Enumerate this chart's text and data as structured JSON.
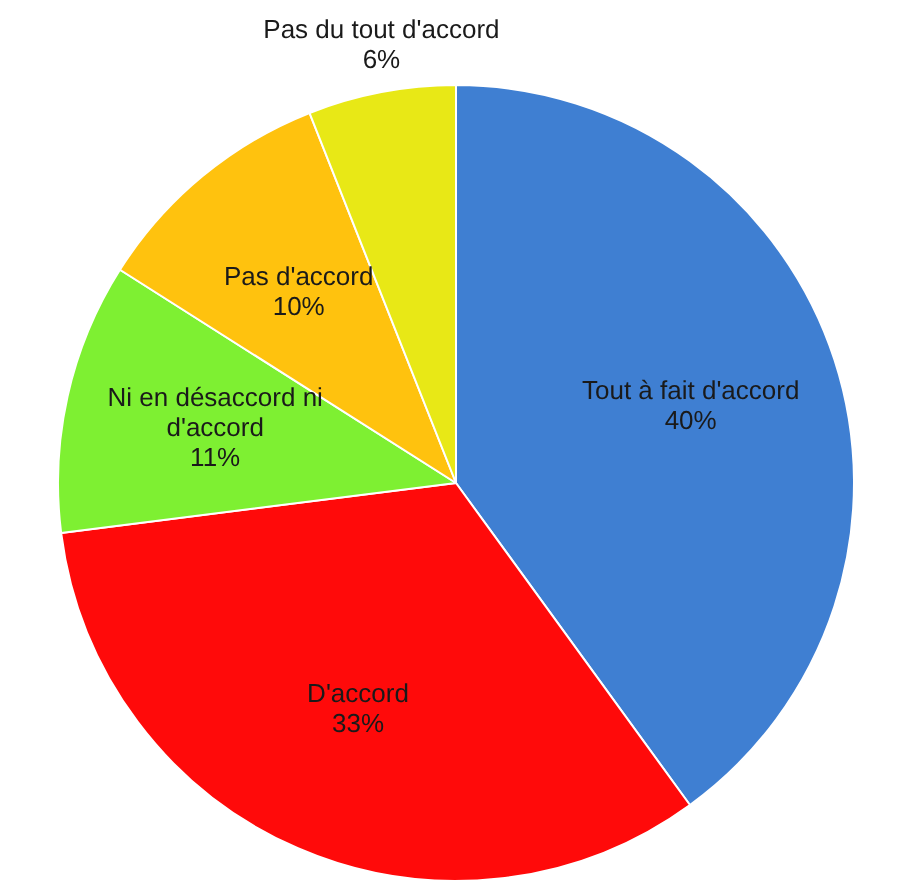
{
  "chart_data": {
    "type": "pie",
    "categories": [
      "Tout à fait d'accord",
      "D'accord",
      "Ni en désaccord ni d'accord",
      "Pas d'accord",
      "Pas du tout d'accord"
    ],
    "values": [
      40,
      33,
      11,
      10,
      6
    ],
    "value_labels": [
      "40%",
      "33%",
      "11%",
      "10%",
      "6%"
    ],
    "colors": [
      "#3f7fd2",
      "#ff0a0a",
      "#7ef032",
      "#ffc20e",
      "#e8e816"
    ],
    "legend": false
  }
}
